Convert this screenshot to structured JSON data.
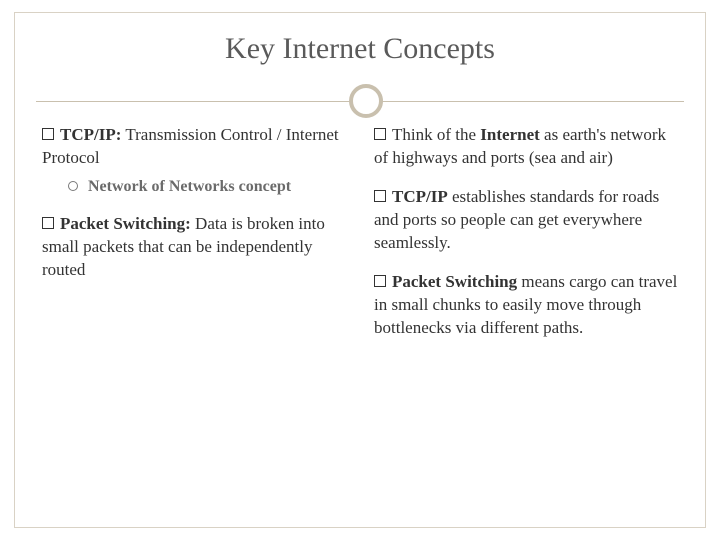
{
  "slide": {
    "title": "Key Internet Concepts",
    "background_color": "#ffffff",
    "border_color": "#d9d2c5",
    "divider_color": "#c9c0ae",
    "title_color": "#5a5a5a",
    "text_color": "#333333",
    "sub_text_color": "#6b6b6b",
    "title_fontsize": 30,
    "body_fontsize": 17
  },
  "left": {
    "item1": {
      "bold": "TCP/IP:",
      "rest": " Transmission Control / Internet Protocol",
      "sub": "Network of Networks concept"
    },
    "item2": {
      "bold": "Packet Switching:",
      "rest": " Data is broken into small packets that can be independently routed"
    }
  },
  "right": {
    "item1": {
      "lead": "Think of the ",
      "bold": "Internet",
      "rest": " as earth's network of highways and ports (sea and air)"
    },
    "item2": {
      "bold": "TCP/IP",
      "rest": " establishes standards for roads and ports so people can get everywhere seamlessly."
    },
    "item3": {
      "bold": "Packet Switching",
      "rest": " means cargo can travel in small chunks to easily move through bottlenecks via different paths."
    }
  }
}
